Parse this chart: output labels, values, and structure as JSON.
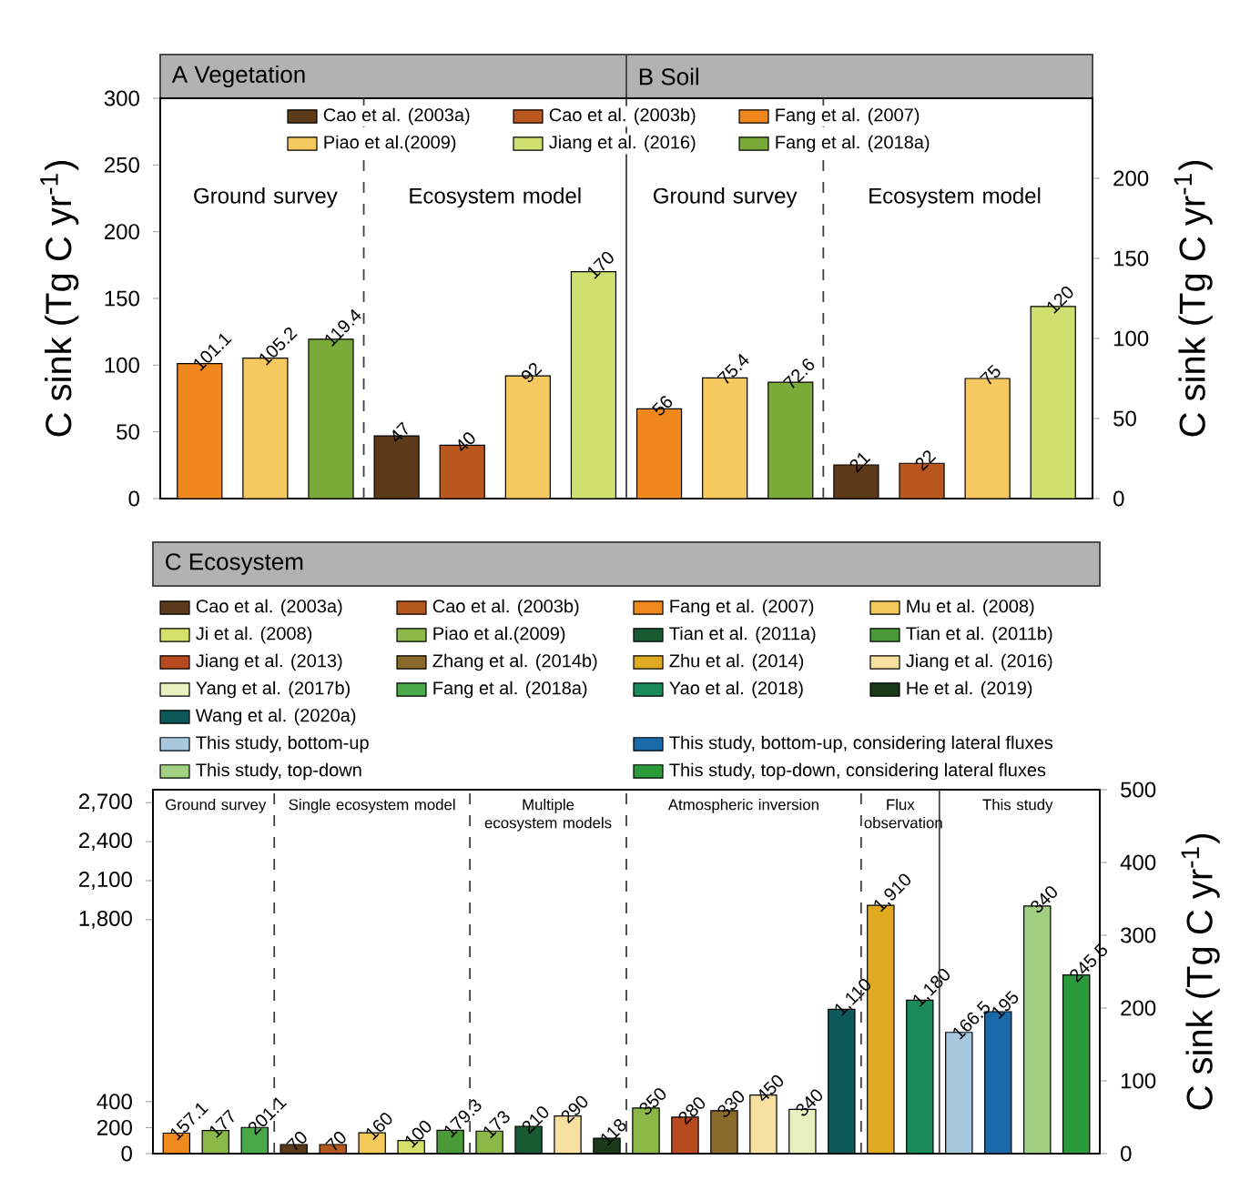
{
  "chart_data": [
    {
      "type": "bar",
      "stacked": true,
      "title": "A Vegetation",
      "subtitle": "B Soil",
      "ylabel": "C sink (Tg C yr$^{-1}$)",
      "y2label": "C sink (Tg C yr$^{-1}$)",
      "categories": [
        null,
        null,
        null,
        null,
        null,
        null,
        null,
        null,
        null,
        null,
        null,
        null,
        null,
        null
      ],
      "ylim": [
        0,
        300
      ],
      "yticks": [
        0,
        50,
        100,
        150,
        200,
        250,
        300
      ],
      "y2lim": [
        0,
        250
      ],
      "y2ticks": [
        0,
        50,
        100,
        150,
        200
      ],
      "data_labels": true,
      "legend": "top",
      "annotations": [
        "Ground survey",
        "Ecosystem model",
        "Ground survey",
        "Ecosystem model"
      ],
      "series": [
        {
          "name": "Cao et al. (2003a)",
          "color": "#5c3a1a",
          "values": [
            null,
            null,
            null,
            47,
            null,
            null,
            null,
            null,
            null,
            null,
            null,
            null,
            null,
            null
          ]
        },
        {
          "name": "Cao et al. (2003b)",
          "color": "#b8581e",
          "values": [
            null,
            null,
            null,
            null,
            40,
            null,
            null,
            null,
            null,
            null,
            null,
            null,
            null,
            null
          ]
        },
        {
          "name": "Fang et al. (2007)",
          "color": "#f0881e",
          "values": [
            101.1,
            null,
            null,
            null,
            null,
            null,
            null,
            null,
            null,
            null,
            null,
            null,
            null,
            null
          ]
        },
        {
          "name": "Piao et al.(2009)",
          "color": "#f6c860",
          "values": [
            null,
            105.2,
            null,
            null,
            null,
            92,
            null,
            null,
            null,
            null,
            null,
            null,
            null,
            null
          ]
        },
        {
          "name": "Jiang et al. (2016)",
          "color": "#cfe070",
          "values": [
            null,
            null,
            null,
            null,
            null,
            null,
            170,
            null,
            null,
            null,
            null,
            null,
            null,
            null
          ]
        },
        {
          "name": "Fang et al. (2018a)",
          "color": "#7aaa3a",
          "values": [
            null,
            null,
            119.4,
            null,
            null,
            null,
            null,
            null,
            null,
            null,
            null,
            null,
            null,
            null
          ]
        },
        {
          "color": "#5c3a1a",
          "axis": "y2",
          "values": [
            null,
            null,
            null,
            null,
            null,
            null,
            null,
            null,
            null,
            null,
            21,
            null,
            null,
            null
          ]
        },
        {
          "color": "#b8581e",
          "axis": "y2",
          "values": [
            null,
            null,
            null,
            null,
            null,
            null,
            null,
            null,
            null,
            null,
            null,
            22,
            null,
            null
          ]
        },
        {
          "color": "#f0881e",
          "axis": "y2",
          "values": [
            null,
            null,
            null,
            null,
            null,
            null,
            null,
            56,
            null,
            null,
            null,
            null,
            null,
            null
          ]
        },
        {
          "color": "#f6c860",
          "axis": "y2",
          "values": [
            null,
            null,
            null,
            null,
            null,
            null,
            null,
            null,
            75.4,
            null,
            null,
            null,
            75,
            null
          ]
        },
        {
          "color": "#cfe070",
          "axis": "y2",
          "values": [
            null,
            null,
            null,
            null,
            null,
            null,
            null,
            null,
            null,
            null,
            null,
            null,
            null,
            120
          ]
        },
        {
          "color": "#7aaa3a",
          "axis": "y2",
          "values": [
            null,
            null,
            null,
            null,
            null,
            null,
            null,
            null,
            null,
            72.6,
            null,
            null,
            null,
            null
          ]
        }
      ]
    },
    {
      "type": "bar",
      "stacked": true,
      "title": "C Ecosystem",
      "y2label": "C sink (Tg C yr$^{-1}$)",
      "categories": [
        null,
        null,
        null,
        null,
        null,
        null,
        null,
        null,
        null,
        null,
        null,
        null,
        null,
        null,
        null,
        null,
        null,
        null,
        null,
        null,
        null,
        null,
        null,
        null
      ],
      "ylim": [
        0,
        2800
      ],
      "yticks": [
        0,
        200,
        400,
        {
          "value": 1800,
          "label": "1,800"
        },
        {
          "value": 2100,
          "label": "2,100"
        },
        {
          "value": 2400,
          "label": "2,400"
        },
        {
          "value": 2700,
          "label": "2,700"
        }
      ],
      "y2lim": [
        0,
        500
      ],
      "y2ticks": [
        0,
        100,
        200,
        300,
        400,
        500
      ],
      "legend": "top",
      "annotations": [
        "Ground survey",
        "Single ecosystem model",
        "Multiple ecosystem models",
        "Atmospheric inversion",
        "Flux observation",
        "This study"
      ],
      "series": [
        {
          "name": "Cao et al. (2003a)",
          "color": "#5a3a1a",
          "values": [
            null,
            null,
            null,
            70,
            null,
            null,
            null,
            null,
            null,
            null,
            null,
            null,
            null,
            null,
            null,
            null,
            null,
            null,
            null,
            null,
            null,
            null,
            null,
            null
          ],
          "value_labels": [
            null,
            null,
            null,
            "70",
            null,
            null,
            null,
            null,
            null,
            null,
            null,
            null,
            null,
            null,
            null,
            null,
            null,
            null,
            null,
            null,
            null,
            null,
            null,
            null
          ]
        },
        {
          "name": "Cao et al. (2003b)",
          "color": "#b5581e",
          "values": [
            null,
            null,
            null,
            null,
            70,
            null,
            null,
            null,
            null,
            null,
            null,
            null,
            null,
            null,
            null,
            null,
            null,
            null,
            null,
            null,
            null,
            null,
            null,
            null
          ],
          "value_labels": [
            null,
            null,
            null,
            null,
            "70",
            null,
            null,
            null,
            null,
            null,
            null,
            null,
            null,
            null,
            null,
            null,
            null,
            null,
            null,
            null,
            null,
            null,
            null,
            null
          ]
        },
        {
          "name": "Fang et al. (2007)",
          "color": "#f08a1e",
          "values": [
            157.1,
            null,
            null,
            null,
            null,
            null,
            null,
            null,
            null,
            null,
            null,
            null,
            null,
            null,
            null,
            null,
            null,
            null,
            null,
            null,
            null,
            null,
            null,
            null
          ],
          "value_labels": [
            "157.1",
            null,
            null,
            null,
            null,
            null,
            null,
            null,
            null,
            null,
            null,
            null,
            null,
            null,
            null,
            null,
            null,
            null,
            null,
            null,
            null,
            null,
            null,
            null
          ]
        },
        {
          "name": "Mu et al. (2008)",
          "color": "#f5c85a",
          "values": [
            null,
            null,
            null,
            null,
            null,
            160,
            null,
            null,
            null,
            null,
            null,
            null,
            null,
            null,
            null,
            null,
            null,
            null,
            null,
            null,
            null,
            null,
            null,
            null
          ],
          "value_labels": [
            null,
            null,
            null,
            null,
            null,
            "160",
            null,
            null,
            null,
            null,
            null,
            null,
            null,
            null,
            null,
            null,
            null,
            null,
            null,
            null,
            null,
            null,
            null,
            null
          ]
        },
        {
          "name": "Ji et al. (2008)",
          "color": "#d4e06a",
          "values": [
            null,
            null,
            null,
            null,
            null,
            null,
            100,
            null,
            null,
            null,
            null,
            null,
            null,
            null,
            null,
            null,
            null,
            null,
            null,
            null,
            null,
            null,
            null,
            null
          ],
          "value_labels": [
            null,
            null,
            null,
            null,
            null,
            null,
            "100",
            null,
            null,
            null,
            null,
            null,
            null,
            null,
            null,
            null,
            null,
            null,
            null,
            null,
            null,
            null,
            null,
            null
          ]
        },
        {
          "name": "Piao et al.(2009)",
          "color": "#8cb84a",
          "values": [
            null,
            177,
            null,
            null,
            null,
            null,
            null,
            null,
            173,
            null,
            null,
            null,
            350,
            null,
            null,
            null,
            null,
            null,
            null,
            null,
            null,
            null,
            null,
            null
          ],
          "value_labels": [
            null,
            "177",
            null,
            null,
            null,
            null,
            null,
            null,
            "173",
            null,
            null,
            null,
            "350",
            null,
            null,
            null,
            null,
            null,
            null,
            null,
            null,
            null,
            null,
            null
          ]
        },
        {
          "name": "Tian et al. (2011a)",
          "color": "#1a5a32",
          "values": [
            null,
            null,
            null,
            null,
            null,
            null,
            null,
            null,
            null,
            210,
            null,
            null,
            null,
            null,
            null,
            null,
            null,
            null,
            null,
            null,
            null,
            null,
            null,
            null
          ],
          "value_labels": [
            null,
            null,
            null,
            null,
            null,
            null,
            null,
            null,
            null,
            "210",
            null,
            null,
            null,
            null,
            null,
            null,
            null,
            null,
            null,
            null,
            null,
            null,
            null,
            null
          ]
        },
        {
          "name": "Tian et al. (2011b)",
          "color": "#4a9a3a",
          "values": [
            null,
            null,
            null,
            null,
            null,
            null,
            null,
            179.3,
            null,
            null,
            null,
            null,
            null,
            null,
            null,
            null,
            null,
            null,
            null,
            null,
            null,
            null,
            null,
            null
          ],
          "value_labels": [
            null,
            null,
            null,
            null,
            null,
            null,
            null,
            "179.3",
            null,
            null,
            null,
            null,
            null,
            null,
            null,
            null,
            null,
            null,
            null,
            null,
            null,
            null,
            null,
            null
          ]
        },
        {
          "name": "Jiang et al. (2013)",
          "color": "#b84a20",
          "values": [
            null,
            null,
            null,
            null,
            null,
            null,
            null,
            null,
            null,
            null,
            null,
            null,
            null,
            280,
            null,
            null,
            null,
            null,
            null,
            null,
            null,
            null,
            null,
            null
          ],
          "value_labels": [
            null,
            null,
            null,
            null,
            null,
            null,
            null,
            null,
            null,
            null,
            null,
            null,
            null,
            "280",
            null,
            null,
            null,
            null,
            null,
            null,
            null,
            null,
            null,
            null
          ]
        },
        {
          "name": "Zhang et al. (2014b)",
          "color": "#8a6a2a",
          "values": [
            null,
            null,
            null,
            null,
            null,
            null,
            null,
            null,
            null,
            null,
            null,
            null,
            null,
            null,
            330,
            null,
            null,
            null,
            null,
            null,
            null,
            null,
            null,
            null
          ],
          "value_labels": [
            null,
            null,
            null,
            null,
            null,
            null,
            null,
            null,
            null,
            null,
            null,
            null,
            null,
            null,
            "330",
            null,
            null,
            null,
            null,
            null,
            null,
            null,
            null,
            null
          ]
        },
        {
          "name": "Zhu et al. (2014)",
          "color": "#e0aa20",
          "values": [
            null,
            null,
            null,
            null,
            null,
            null,
            null,
            null,
            null,
            null,
            null,
            null,
            null,
            null,
            null,
            null,
            null,
            null,
            1910,
            null,
            null,
            null,
            null,
            null
          ],
          "value_labels": [
            null,
            null,
            null,
            null,
            null,
            null,
            null,
            null,
            null,
            null,
            null,
            null,
            null,
            null,
            null,
            null,
            null,
            null,
            "1,910",
            null,
            null,
            null,
            null,
            null
          ]
        },
        {
          "name": "Jiang et al. (2016)",
          "color": "#f8e0a0",
          "values": [
            null,
            null,
            null,
            null,
            null,
            null,
            null,
            null,
            null,
            null,
            290,
            null,
            null,
            null,
            null,
            450,
            null,
            null,
            null,
            null,
            null,
            null,
            null,
            null
          ],
          "value_labels": [
            null,
            null,
            null,
            null,
            null,
            null,
            null,
            null,
            null,
            null,
            "290",
            null,
            null,
            null,
            null,
            "450",
            null,
            null,
            null,
            null,
            null,
            null,
            null,
            null
          ]
        },
        {
          "name": "Yang et al. (2017b)",
          "color": "#e8f0c0",
          "values": [
            null,
            null,
            null,
            null,
            null,
            null,
            null,
            null,
            null,
            null,
            null,
            null,
            null,
            null,
            null,
            null,
            340,
            null,
            null,
            null,
            null,
            null,
            null,
            null
          ],
          "value_labels": [
            null,
            null,
            null,
            null,
            null,
            null,
            null,
            null,
            null,
            null,
            null,
            null,
            null,
            null,
            null,
            null,
            "340",
            null,
            null,
            null,
            null,
            null,
            null,
            null
          ]
        },
        {
          "name": "Fang et al. (2018a)",
          "color": "#4aaa4a",
          "values": [
            null,
            null,
            201.1,
            null,
            null,
            null,
            null,
            null,
            null,
            null,
            null,
            null,
            null,
            null,
            null,
            null,
            null,
            null,
            null,
            null,
            null,
            null,
            null,
            null
          ],
          "value_labels": [
            null,
            null,
            "201.1",
            null,
            null,
            null,
            null,
            null,
            null,
            null,
            null,
            null,
            null,
            null,
            null,
            null,
            null,
            null,
            null,
            null,
            null,
            null,
            null,
            null
          ]
        },
        {
          "name": "Yao et al. (2018)",
          "color": "#1a8a5a",
          "values": [
            null,
            null,
            null,
            null,
            null,
            null,
            null,
            null,
            null,
            null,
            null,
            null,
            null,
            null,
            null,
            null,
            null,
            null,
            null,
            1180,
            null,
            null,
            null,
            null
          ],
          "value_labels": [
            null,
            null,
            null,
            null,
            null,
            null,
            null,
            null,
            null,
            null,
            null,
            null,
            null,
            null,
            null,
            null,
            null,
            null,
            null,
            "1,180",
            null,
            null,
            null,
            null
          ]
        },
        {
          "name": "He et al. (2019)",
          "color": "#1a3a1a",
          "values": [
            null,
            null,
            null,
            null,
            null,
            null,
            null,
            null,
            null,
            null,
            null,
            118,
            null,
            null,
            null,
            null,
            null,
            null,
            null,
            null,
            null,
            null,
            null,
            null
          ],
          "value_labels": [
            null,
            null,
            null,
            null,
            null,
            null,
            null,
            null,
            null,
            null,
            null,
            "118",
            null,
            null,
            null,
            null,
            null,
            null,
            null,
            null,
            null,
            null,
            null,
            null
          ]
        },
        {
          "name": "Wang et al. (2020a)",
          "color": "#0e5a5a",
          "values": [
            null,
            null,
            null,
            null,
            null,
            null,
            null,
            null,
            null,
            null,
            null,
            null,
            null,
            null,
            null,
            null,
            null,
            1110,
            null,
            null,
            null,
            null,
            null,
            null
          ],
          "value_labels": [
            null,
            null,
            null,
            null,
            null,
            null,
            null,
            null,
            null,
            null,
            null,
            null,
            null,
            null,
            null,
            null,
            null,
            "1,110",
            null,
            null,
            null,
            null,
            null,
            null
          ]
        },
        {
          "name": "This study, bottom-up",
          "color": "#a8c8e0",
          "axis": "y2",
          "values": [
            null,
            null,
            null,
            null,
            null,
            null,
            null,
            null,
            null,
            null,
            null,
            null,
            null,
            null,
            null,
            null,
            null,
            null,
            null,
            null,
            166.5,
            null,
            null,
            null
          ],
          "value_labels": [
            null,
            null,
            null,
            null,
            null,
            null,
            null,
            null,
            null,
            null,
            null,
            null,
            null,
            null,
            null,
            null,
            null,
            null,
            null,
            null,
            "166.5",
            null,
            null,
            null
          ]
        },
        {
          "name": "This study, bottom-up, considering lateral fluxes",
          "color": "#1a6aaa",
          "axis": "y2",
          "values": [
            null,
            null,
            null,
            null,
            null,
            null,
            null,
            null,
            null,
            null,
            null,
            null,
            null,
            null,
            null,
            null,
            null,
            null,
            null,
            null,
            null,
            195,
            null,
            null
          ],
          "value_labels": [
            null,
            null,
            null,
            null,
            null,
            null,
            null,
            null,
            null,
            null,
            null,
            null,
            null,
            null,
            null,
            null,
            null,
            null,
            null,
            null,
            null,
            "195",
            null,
            null
          ]
        },
        {
          "name": "This study, top-down",
          "color": "#a0d080",
          "axis": "y2",
          "values": [
            null,
            null,
            null,
            null,
            null,
            null,
            null,
            null,
            null,
            null,
            null,
            null,
            null,
            null,
            null,
            null,
            null,
            null,
            null,
            null,
            null,
            null,
            340,
            null
          ],
          "value_labels": [
            null,
            null,
            null,
            null,
            null,
            null,
            null,
            null,
            null,
            null,
            null,
            null,
            null,
            null,
            null,
            null,
            null,
            null,
            null,
            null,
            null,
            null,
            "340",
            null
          ]
        },
        {
          "name": "This study, top-down, considering lateral fluxes",
          "color": "#2a9a3a",
          "axis": "y2",
          "values": [
            null,
            null,
            null,
            null,
            null,
            null,
            null,
            null,
            null,
            null,
            null,
            null,
            null,
            null,
            null,
            null,
            null,
            null,
            null,
            null,
            null,
            null,
            null,
            245.5
          ],
          "value_labels": [
            null,
            null,
            null,
            null,
            null,
            null,
            null,
            null,
            null,
            null,
            null,
            null,
            null,
            null,
            null,
            null,
            null,
            null,
            null,
            null,
            null,
            null,
            null,
            "245.5"
          ]
        }
      ]
    }
  ]
}
